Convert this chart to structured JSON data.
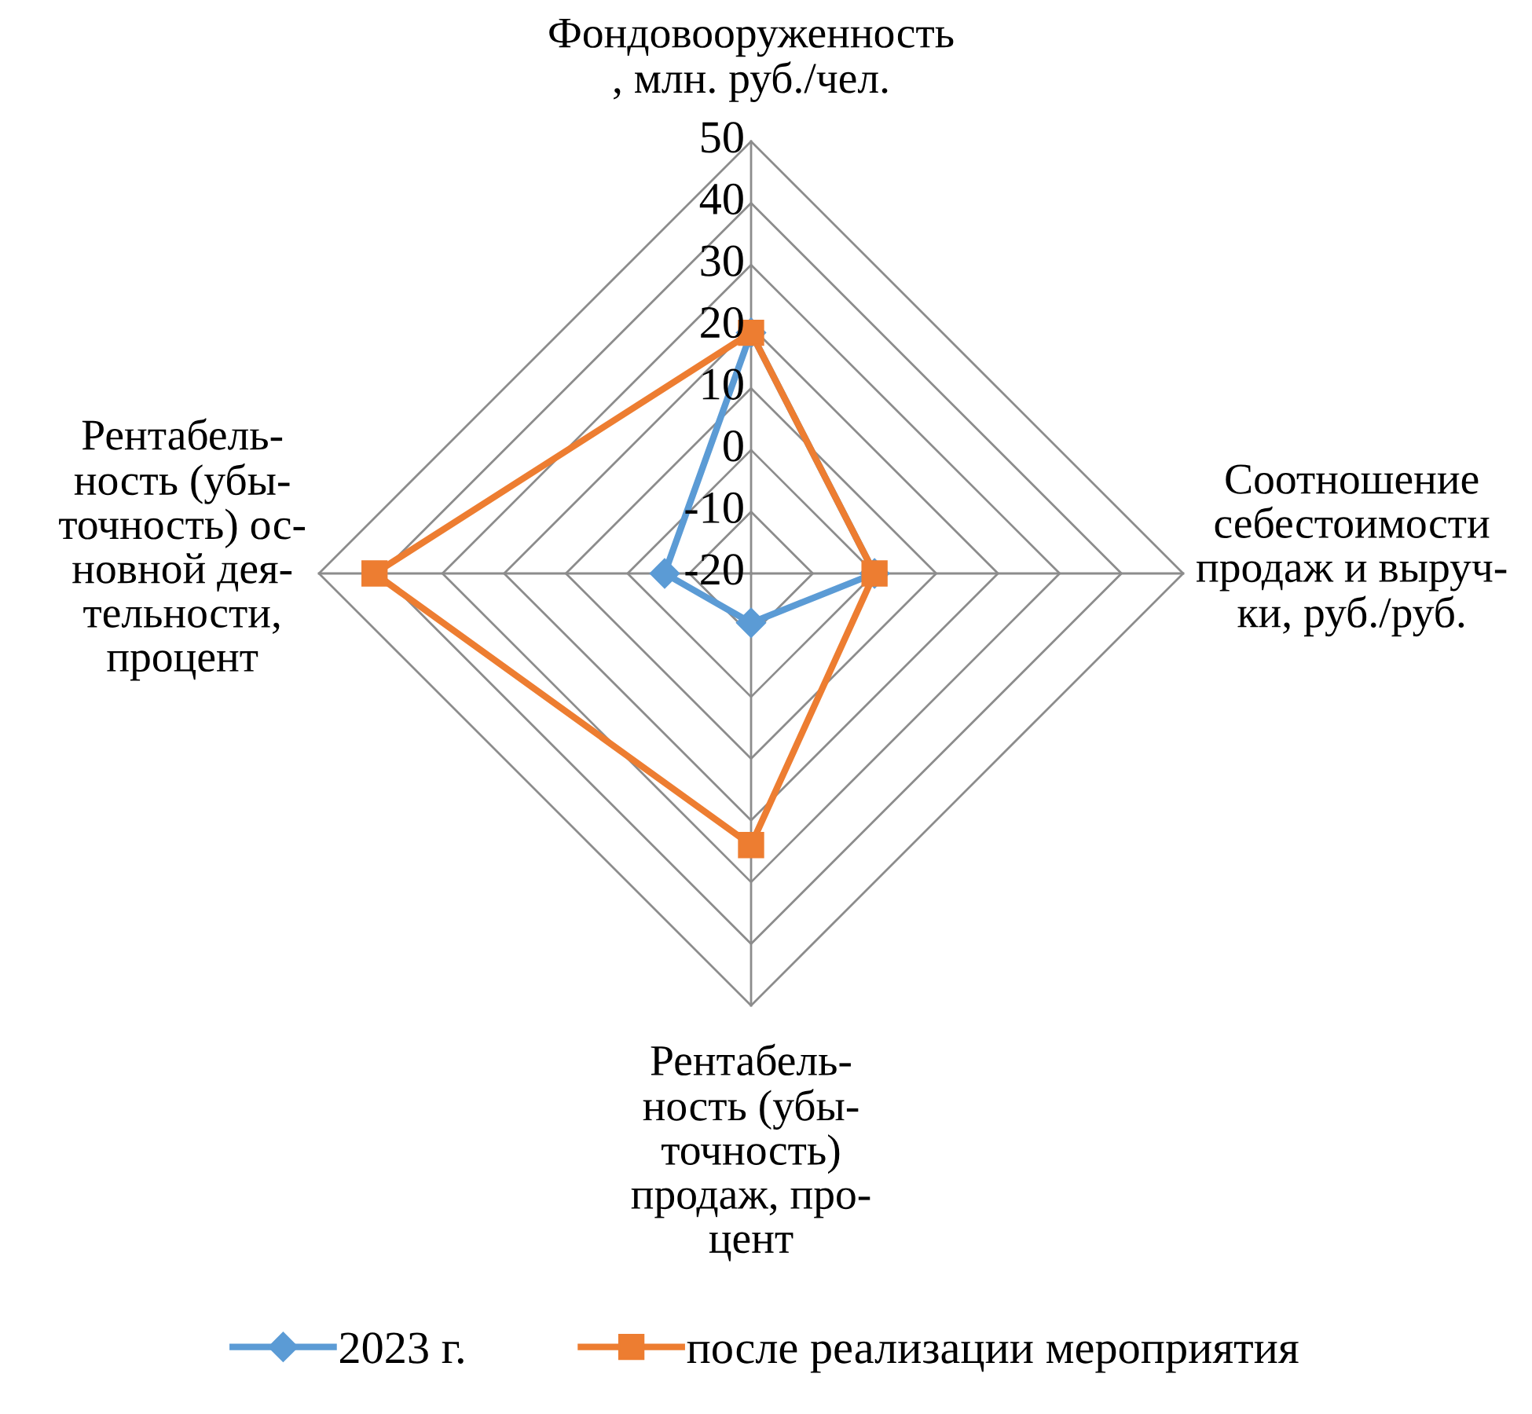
{
  "chart_data": {
    "type": "radar",
    "categories": [
      "Фондовооруженность\n, млн. руб./чел.",
      "Соотношение\nсебестоимости\nпродаж и выруч-\nки, руб./руб.",
      "Рентабель-\nность (убы-\nточность)\nпродаж, про-\nцент",
      "Рентабель-\nность (убы-\nточность) ос-\nновной дея-\nтельности,\nпроцент"
    ],
    "series": [
      {
        "name": "2023 г.",
        "color": "#5b9bd5",
        "marker": "diamond",
        "values": [
          19,
          0,
          -12,
          -6
        ]
      },
      {
        "name": "после реализации мероприятия",
        "color": "#ed7d31",
        "marker": "square",
        "values": [
          19,
          0,
          24,
          41
        ]
      }
    ],
    "ylim": [
      -20,
      50
    ],
    "yticks": [
      -20,
      -10,
      0,
      10,
      20,
      30,
      40,
      50
    ],
    "grid": true,
    "legend": "bottom"
  }
}
